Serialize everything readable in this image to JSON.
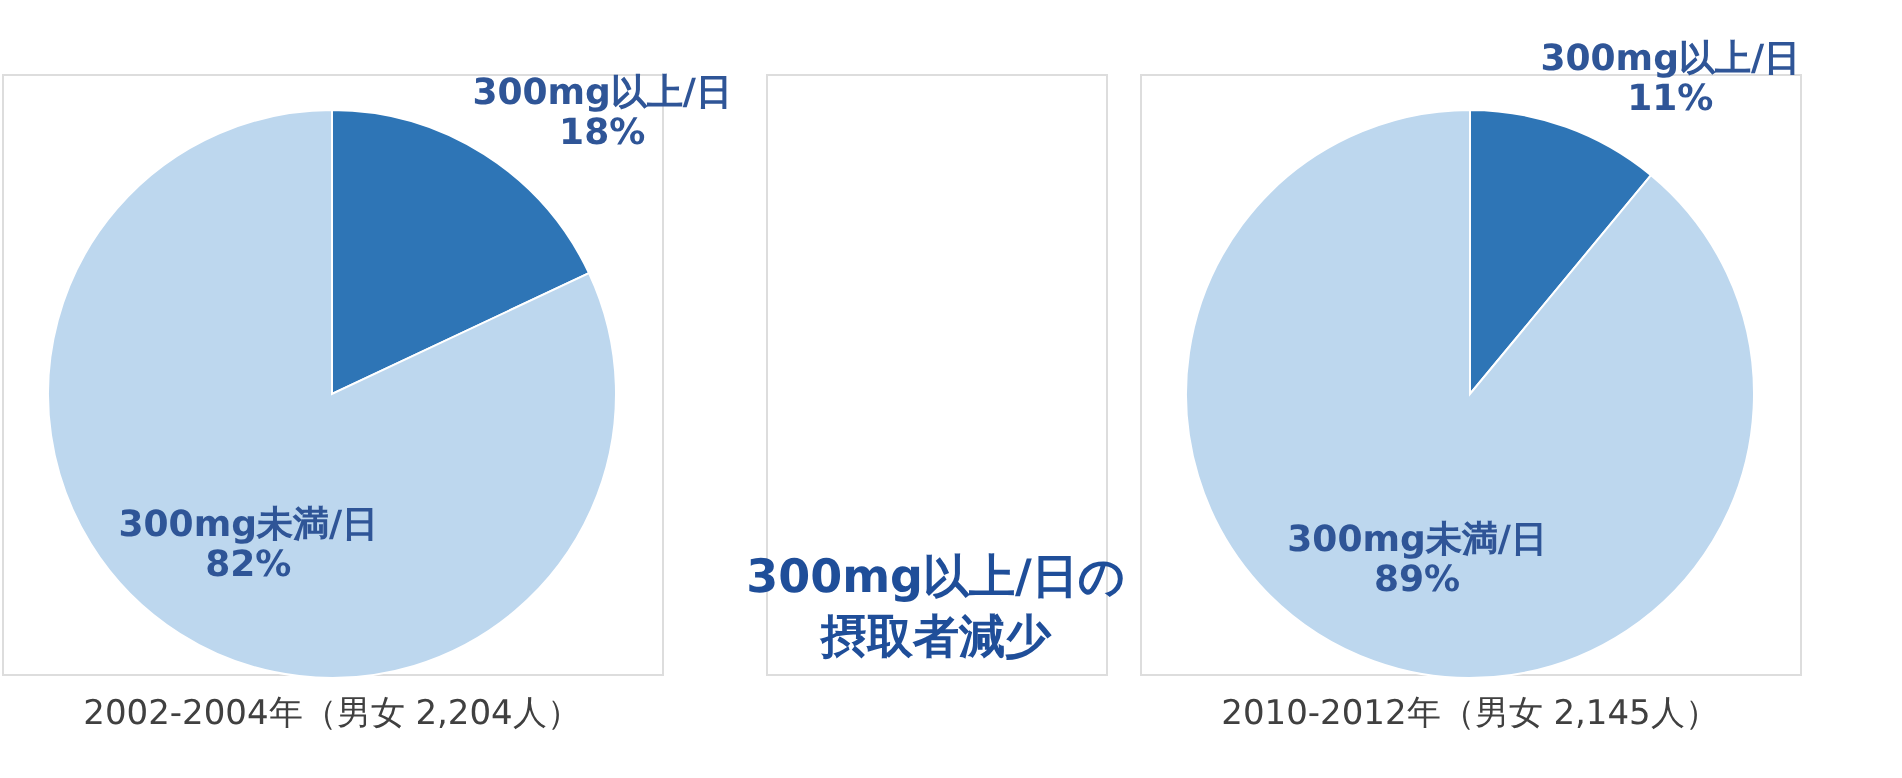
{
  "chart_data": [
    {
      "type": "pie",
      "title": "2002-2004年（男女 2,204人）",
      "categories": [
        "300mg以上/日",
        "300mg未満/日"
      ],
      "values": [
        18,
        82
      ],
      "colors": [
        "#2e75b6",
        "#bdd7ee"
      ],
      "value_labels": [
        "18%",
        "82%"
      ],
      "annotations": [
        "300mg以上/日の",
        "摂取者減少"
      ]
    },
    {
      "type": "pie",
      "title": "2010-2012年（男女 2,145人）",
      "categories": [
        "300mg以上/日",
        "300mg未満/日"
      ],
      "values": [
        11,
        89
      ],
      "colors": [
        "#2e75b6",
        "#bdd7ee"
      ],
      "value_labels": [
        "11%",
        "89%"
      ]
    }
  ]
}
